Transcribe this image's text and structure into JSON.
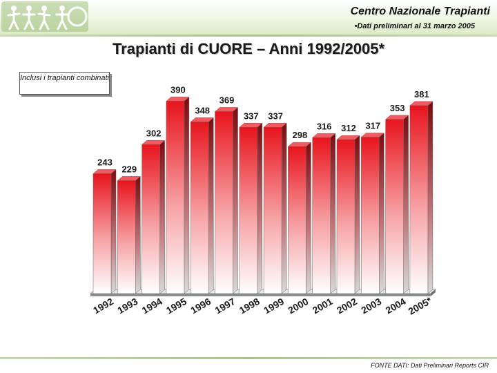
{
  "header": {
    "org_name": "Centro Nazionale Trapianti",
    "subtitle": "•Dati preliminari al 31 marzo 2005"
  },
  "note": "Inclusi i trapianti combinati",
  "footer": {
    "source": "FONTE DATI: Dati Preliminari Reports CIR"
  },
  "colors": {
    "bar_top": "#e8141d",
    "bar_bottom": "#ffffff",
    "header_band": "#dcebc8"
  },
  "chart_data": {
    "type": "bar",
    "title": "Trapianti di CUORE – Anni 1992/2005*",
    "xlabel": "",
    "ylabel": "",
    "categories": [
      "1992",
      "1993",
      "1994",
      "1995",
      "1996",
      "1997",
      "1998",
      "1999",
      "2000",
      "2001",
      "2002",
      "2003",
      "2004",
      "2005*"
    ],
    "values": [
      243,
      229,
      302,
      390,
      348,
      369,
      337,
      337,
      298,
      316,
      312,
      317,
      353,
      381
    ],
    "ylim": [
      0,
      420
    ],
    "grid": false,
    "legend": "none",
    "style": "3d"
  }
}
